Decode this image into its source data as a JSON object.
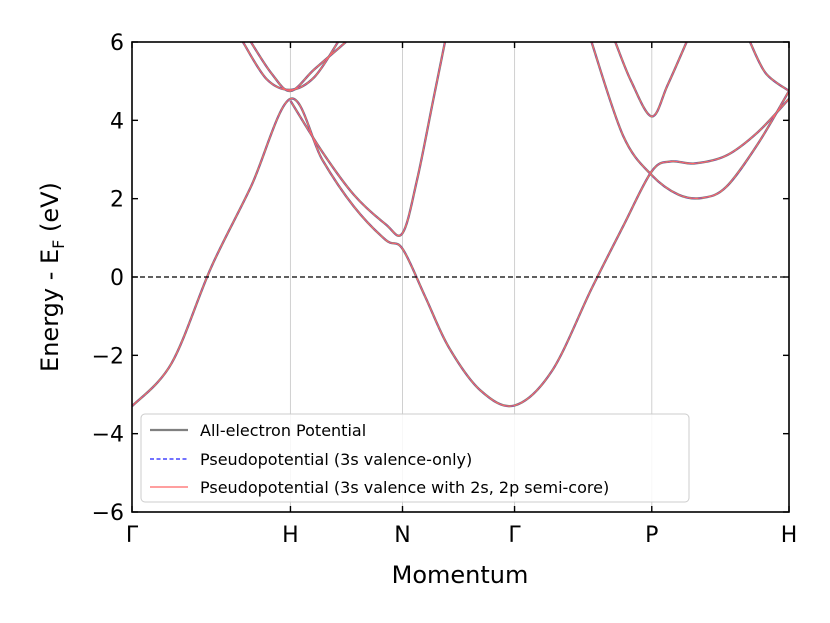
{
  "chart_data": {
    "type": "line",
    "title": "",
    "xlabel": "Momentum",
    "ylabel": "Energy - E",
    "ylabel_subscript": "F",
    "ylabel_unit": "(eV)",
    "ylim": [
      -6,
      6
    ],
    "yticks": [
      -6,
      -4,
      -2,
      0,
      2,
      4,
      6
    ],
    "ytick_labels": [
      "−6",
      "−4",
      "−2",
      "0",
      "2",
      "4",
      "6"
    ],
    "x_path": {
      "labels": [
        "Γ",
        "H",
        "N",
        "Γ",
        "P",
        "H"
      ],
      "positions": [
        0.0,
        1.0,
        1.7071,
        2.4142,
        3.2802,
        4.1462
      ]
    },
    "xlim": [
      0.0,
      4.1462
    ],
    "fermi_level": 0,
    "grid": "vertical lines at high-symmetry points",
    "legend_placement": "lower-left",
    "colors": {
      "all_electron": "#808080",
      "valence_only": "#1f1fff",
      "semi_core": "#ff6666",
      "fermi_line": "#000000",
      "grid": "#d0d0d0"
    },
    "series": [
      {
        "name": "All-electron Potential",
        "style": "solid",
        "bands": [
          {
            "x": [
              0.0,
              0.25,
              0.5,
              0.75,
              1.0,
              1.2,
              1.4,
              1.6,
              1.7071,
              1.85,
              2.0,
              2.2,
              2.4142,
              2.65,
              2.9,
              3.1,
              3.2802,
              3.4,
              3.55,
              3.75,
              3.95,
              4.1462
            ],
            "y": [
              -3.3,
              -2.2,
              0.25,
              2.3,
              4.55,
              3.0,
              1.8,
              0.95,
              0.72,
              -0.5,
              -1.8,
              -2.9,
              -3.28,
              -2.4,
              -0.3,
              1.3,
              2.7,
              2.95,
              2.9,
              3.1,
              3.7,
              4.55
            ]
          },
          {
            "x": [
              1.0,
              1.2,
              1.4,
              1.6,
              1.7071,
              1.8,
              1.9,
              2.0
            ],
            "y": [
              4.5,
              3.2,
              2.1,
              1.35,
              1.12,
              2.5,
              4.5,
              6.5
            ]
          },
          {
            "x": [
              0.7,
              0.85,
              1.0,
              1.15,
              1.3
            ],
            "y": [
              6.0,
              5.05,
              4.78,
              5.1,
              6.0
            ]
          },
          {
            "x": [
              0.75,
              0.88,
              1.0,
              1.15,
              1.35
            ],
            "y": [
              6.0,
              5.2,
              4.75,
              5.3,
              6.0
            ]
          },
          {
            "x": [
              3.05,
              3.15,
              3.2802,
              3.38,
              3.5
            ],
            "y": [
              6.0,
              5.0,
              4.1,
              4.9,
              6.0
            ]
          },
          {
            "x": [
              2.9,
              3.1,
              3.2802,
              3.45,
              3.6,
              3.75,
              3.95,
              4.1462
            ],
            "y": [
              6.0,
              3.6,
              2.6,
              2.1,
              2.02,
              2.3,
              3.4,
              4.75
            ]
          },
          {
            "x": [
              3.9,
              4.0,
              4.1462
            ],
            "y": [
              6.0,
              5.2,
              4.75
            ]
          }
        ]
      },
      {
        "name": "Pseudopotential (3s valence-only)",
        "style": "dashed"
      },
      {
        "name": "Pseudopotential (3s valence with 2s, 2p semi-core)",
        "style": "solid"
      }
    ]
  }
}
